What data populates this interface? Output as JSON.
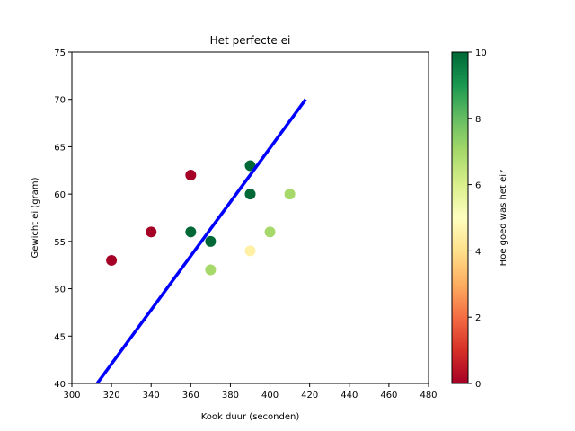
{
  "chart_data": {
    "type": "scatter",
    "title": "Het perfecte ei",
    "xlabel": "Kook duur (seconden)",
    "ylabel": "Gewicht ei (gram)",
    "xlim": [
      300,
      480
    ],
    "ylim": [
      40,
      75
    ],
    "xticks": [
      "300",
      "320",
      "340",
      "360",
      "380",
      "400",
      "420",
      "440",
      "460",
      "480"
    ],
    "yticks": [
      "40",
      "45",
      "50",
      "55",
      "60",
      "65",
      "70",
      "75"
    ],
    "grid": false,
    "points": [
      {
        "x": 320,
        "y": 53,
        "score": 0
      },
      {
        "x": 340,
        "y": 56,
        "score": 0
      },
      {
        "x": 360,
        "y": 62,
        "score": 0
      },
      {
        "x": 360,
        "y": 56,
        "score": 10
      },
      {
        "x": 370,
        "y": 55,
        "score": 10
      },
      {
        "x": 370,
        "y": 52,
        "score": 7
      },
      {
        "x": 390,
        "y": 63,
        "score": 10
      },
      {
        "x": 390,
        "y": 60,
        "score": 10
      },
      {
        "x": 390,
        "y": 54,
        "score": 4.5
      },
      {
        "x": 400,
        "y": 56,
        "score": 7
      },
      {
        "x": 410,
        "y": 60,
        "score": 7
      }
    ],
    "fit_line": {
      "x": [
        311,
        418
      ],
      "y": [
        39.5,
        70
      ],
      "color": "#0000ff"
    },
    "colorbar": {
      "label": "Hoe goed was het ei?",
      "range": [
        0,
        10
      ],
      "ticks": [
        "0",
        "2",
        "4",
        "6",
        "8",
        "10"
      ],
      "colormap": "RdYlGn",
      "colors": [
        "#a50026",
        "#d73027",
        "#f46d43",
        "#fdae61",
        "#fee08b",
        "#ffffbf",
        "#d9ef8b",
        "#a6d96a",
        "#66bd63",
        "#1a9850",
        "#006837"
      ]
    }
  }
}
